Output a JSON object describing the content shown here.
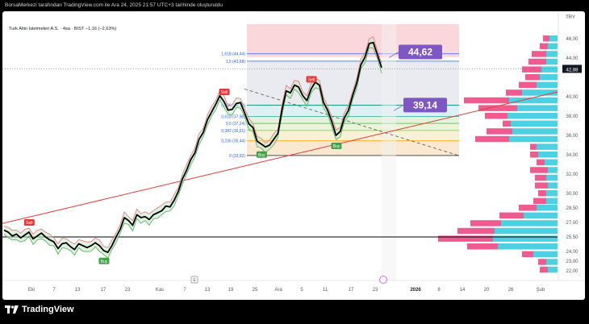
{
  "header": {
    "title": "BorsaMerkezi tarafından TradingView.com ile Ara 24, 2025 21:57 UTC+3 tarihinde oluşturuldu"
  },
  "legend": {
    "symbol": "Turk Altin Isletmeleri A.S. · 4sa · BIST",
    "change": "−1,16 (−2,63%)"
  },
  "currency": "TRY",
  "footer": {
    "brand": "TradingView"
  },
  "colors": {
    "candle": "#000000",
    "up_band": "#4caf50",
    "down_band": "#e57373",
    "trend_line": "#e53935",
    "fib_box": "#f8c9cf",
    "vol_pink": "#ef5b8f",
    "vol_blue": "#4dd0e1"
  },
  "chart_data": {
    "type": "line",
    "title": "Turk Altin Isletmeleri A.S. · 4sa · BIST",
    "ylim": [
      21.0,
      47.5
    ],
    "x_ticks": [
      "Eki",
      "7",
      "13",
      "17",
      "23",
      "Kas",
      "7",
      "13",
      "19",
      "25",
      "Ara",
      "5",
      "11",
      "17",
      "23",
      "2026",
      "8",
      "14",
      "20",
      "26",
      "Şub"
    ],
    "y_ticks": [
      "46,00",
      "44,00",
      "42,88",
      "40,00",
      "38,00",
      "36,00",
      "34,00",
      "32,00",
      "30,00",
      "28,50",
      "27,00",
      "25,50",
      "24,00",
      "23,00",
      "22,00"
    ],
    "last_price": "42,88",
    "series": [
      {
        "values": [
          26.2,
          26.0,
          25.6,
          25.8,
          25.4,
          25.7,
          26.0,
          25.3,
          25.6,
          25.9,
          25.5,
          25.2,
          25.0,
          24.3,
          24.8,
          24.9,
          24.5,
          24.2,
          24.8,
          24.6,
          24.4,
          24.6,
          24.9,
          24.6,
          24.1,
          23.9,
          24.6,
          25.5,
          26.3,
          27.5,
          27.2,
          26.7,
          27.8,
          27.5,
          27.6,
          27.3,
          27.8,
          28.0,
          28.2,
          28.7,
          28.6,
          29.3,
          30.2,
          31.5,
          32.4,
          33.5,
          34.2,
          35.6,
          36.3,
          37.6,
          38.4,
          39.2,
          40.1,
          39.5,
          38.6,
          38.7,
          39.3,
          39.4,
          38.3,
          37.2,
          36.8,
          35.4,
          35.1,
          34.8,
          35.0,
          35.6,
          36.2,
          38.7,
          40.6,
          40.4,
          41.2,
          41.0,
          40.1,
          39.6,
          40.8,
          41.5,
          41.2,
          39.4,
          38.6,
          37.4,
          36.0,
          36.4,
          37.8,
          38.6,
          40.1,
          41.4,
          43.3,
          44.1,
          45.5,
          45.6,
          44.3,
          43.0
        ]
      }
    ],
    "fibonacci": [
      {
        "label": "1,618 (44,44)",
        "value": 44.44
      },
      {
        "label": "1,5 (43,68)",
        "value": 43.68
      },
      {
        "label": "0,786 (39,13)",
        "value": 39.13
      },
      {
        "label": "0,618 (37,96)",
        "value": 37.96
      },
      {
        "label": "0,5 (37,24)",
        "value": 37.24
      },
      {
        "label": "0,382 (36,51)",
        "value": 36.51
      },
      {
        "label": "0,236 (35,44)",
        "value": 35.44
      },
      {
        "label": "0 (33,92)",
        "value": 33.92
      }
    ],
    "annotations": [
      {
        "text": "44,62",
        "value": 44.62
      },
      {
        "text": "39,14",
        "value": 39.14
      }
    ],
    "signals": [
      {
        "text": "Sell",
        "type": "sell"
      },
      {
        "text": "Buy",
        "type": "buy"
      },
      {
        "text": "Sell",
        "type": "sell"
      },
      {
        "text": "Buy",
        "type": "buy"
      },
      {
        "text": "Sell",
        "type": "sell"
      },
      {
        "text": "Buy",
        "type": "buy"
      }
    ],
    "horizontal_line": 25.5,
    "volume_profile": [
      {
        "price": 46.0,
        "up": 10,
        "down": 8
      },
      {
        "price": 45.2,
        "up": 12,
        "down": 10
      },
      {
        "price": 44.4,
        "up": 14,
        "down": 18
      },
      {
        "price": 43.6,
        "up": 14,
        "down": 22
      },
      {
        "price": 42.8,
        "up": 20,
        "down": 24
      },
      {
        "price": 42.0,
        "up": 22,
        "down": 18
      },
      {
        "price": 41.2,
        "up": 26,
        "down": 22
      },
      {
        "price": 40.4,
        "up": 44,
        "down": 20
      },
      {
        "price": 39.6,
        "up": 60,
        "down": 56
      },
      {
        "price": 38.8,
        "up": 50,
        "down": 48
      },
      {
        "price": 38.0,
        "up": 62,
        "down": 28
      },
      {
        "price": 37.2,
        "up": 58,
        "down": 10
      },
      {
        "price": 36.4,
        "up": 56,
        "down": 32
      },
      {
        "price": 35.6,
        "up": 60,
        "down": 42
      },
      {
        "price": 34.8,
        "up": 26,
        "down": 8
      },
      {
        "price": 34.0,
        "up": 24,
        "down": 10
      },
      {
        "price": 33.2,
        "up": 16,
        "down": 10
      },
      {
        "price": 32.4,
        "up": 12,
        "down": 22
      },
      {
        "price": 31.6,
        "up": 14,
        "down": 14
      },
      {
        "price": 30.8,
        "up": 12,
        "down": 16
      },
      {
        "price": 30.0,
        "up": 14,
        "down": 10
      },
      {
        "price": 29.2,
        "up": 14,
        "down": 16
      },
      {
        "price": 28.5,
        "up": 26,
        "down": 22
      },
      {
        "price": 27.7,
        "up": 42,
        "down": 30
      },
      {
        "price": 26.9,
        "up": 70,
        "down": 38
      },
      {
        "price": 26.1,
        "up": 78,
        "down": 46
      },
      {
        "price": 25.3,
        "up": 80,
        "down": 68
      },
      {
        "price": 24.5,
        "up": 74,
        "down": 38
      },
      {
        "price": 23.7,
        "up": 30,
        "down": 14
      },
      {
        "price": 22.9,
        "up": 14,
        "down": 10
      },
      {
        "price": 22.1,
        "up": 12,
        "down": 10
      }
    ]
  }
}
